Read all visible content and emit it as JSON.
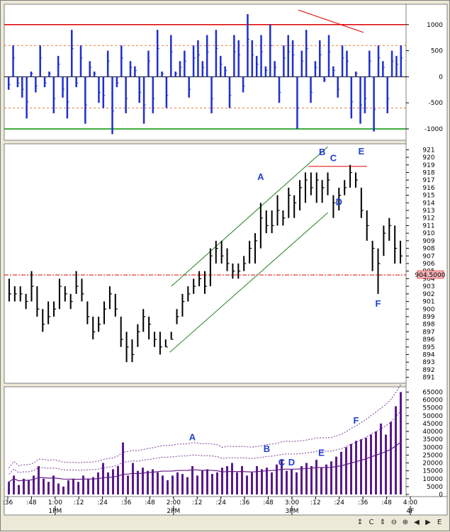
{
  "chart_data": [
    {
      "type": "bar",
      "panel": "oscillator",
      "y_ticks": [
        "1000",
        "500",
        "0",
        "-500",
        "-1000"
      ],
      "ylim": [
        -1150,
        1350
      ],
      "reference_lines": [
        1000,
        0,
        -1000
      ],
      "dotted_lines": [
        600,
        -600
      ],
      "values": [
        -250,
        600,
        -200,
        -400,
        -800,
        100,
        -300,
        600,
        -200,
        100,
        -700,
        400,
        -400,
        -800,
        900,
        -200,
        600,
        -900,
        300,
        100,
        -500,
        -600,
        500,
        -1100,
        -200,
        600,
        -700,
        300,
        200,
        -500,
        -900,
        500,
        -700,
        900,
        100,
        -600,
        800,
        100,
        300,
        500,
        -400,
        600,
        700,
        300,
        800,
        -700,
        900,
        400,
        200,
        -600,
        800,
        700,
        -300,
        1200,
        700,
        400,
        800,
        200,
        1000,
        300,
        -500,
        600,
        800,
        700,
        -1000,
        500,
        900,
        -500,
        300,
        700,
        -100,
        800,
        200,
        -400,
        600,
        500,
        -800,
        100,
        -900,
        -700,
        500,
        -1050,
        600,
        300,
        -700,
        500,
        400,
        600
      ]
    },
    {
      "type": "ohlc",
      "panel": "price",
      "y_ticks": [
        "921",
        "920",
        "919",
        "918",
        "917",
        "916",
        "915",
        "914",
        "913",
        "912",
        "911",
        "910",
        "909",
        "908",
        "907",
        "906",
        "905",
        "904",
        "903",
        "902",
        "901",
        "900",
        "899",
        "898",
        "897",
        "896",
        "895",
        "894",
        "893",
        "892",
        "891"
      ],
      "ylim": [
        890.5,
        921.5
      ],
      "current_price_label": "904.5000",
      "current_price": 904.5,
      "resistance_level": 918.8,
      "bars": [
        [
          904,
          901,
          902
        ],
        [
          903,
          901,
          902
        ],
        [
          903,
          901,
          902
        ],
        [
          902,
          900,
          901
        ],
        [
          905,
          901,
          903
        ],
        [
          903,
          899,
          900
        ],
        [
          900,
          897,
          898
        ],
        [
          901,
          898,
          899
        ],
        [
          901,
          899,
          900
        ],
        [
          904,
          900,
          903
        ],
        [
          903,
          901,
          902
        ],
        [
          902,
          900,
          901
        ],
        [
          905,
          902,
          903
        ],
        [
          904,
          901,
          902
        ],
        [
          901,
          898,
          899
        ],
        [
          899,
          896,
          897
        ],
        [
          899,
          897,
          898
        ],
        [
          901,
          898,
          900
        ],
        [
          903,
          900,
          902
        ],
        [
          902,
          899,
          900
        ],
        [
          899,
          895,
          896
        ],
        [
          897,
          893,
          895
        ],
        [
          896,
          893,
          894
        ],
        [
          898,
          895,
          897
        ],
        [
          900,
          897,
          899
        ],
        [
          899,
          896,
          898
        ],
        [
          897,
          895,
          896
        ],
        [
          897,
          894,
          895
        ],
        [
          896,
          895,
          895
        ],
        [
          897,
          896,
          896
        ],
        [
          900,
          898,
          899
        ],
        [
          902,
          899,
          901
        ],
        [
          903,
          901,
          902
        ],
        [
          904,
          902,
          903
        ],
        [
          905,
          903,
          904
        ],
        [
          905,
          902,
          903
        ],
        [
          908,
          903,
          907
        ],
        [
          909,
          906,
          908
        ],
        [
          909,
          906,
          907
        ],
        [
          908,
          905,
          906
        ],
        [
          906,
          904,
          905
        ],
        [
          906,
          904,
          905
        ],
        [
          907,
          905,
          906
        ],
        [
          909,
          906,
          908
        ],
        [
          910,
          906,
          909
        ],
        [
          914,
          908,
          912
        ],
        [
          913,
          910,
          911
        ],
        [
          913,
          910,
          911
        ],
        [
          915,
          911,
          913
        ],
        [
          913,
          911,
          912
        ],
        [
          916,
          912,
          915
        ],
        [
          915,
          912,
          914
        ],
        [
          917,
          913,
          916
        ],
        [
          918,
          914,
          917
        ],
        [
          918,
          915,
          916
        ],
        [
          918,
          914,
          917
        ],
        [
          917,
          914,
          916
        ],
        [
          918,
          915,
          917
        ],
        [
          915,
          912,
          914
        ],
        [
          916,
          913,
          915
        ],
        [
          917,
          915,
          916
        ],
        [
          919,
          916,
          918
        ],
        [
          918,
          916,
          917
        ],
        [
          916,
          912,
          913
        ],
        [
          913,
          909,
          911
        ],
        [
          909,
          905,
          908
        ],
        [
          908,
          902,
          906
        ],
        [
          911,
          907,
          910
        ],
        [
          912,
          909,
          911
        ],
        [
          911,
          906,
          908
        ],
        [
          909,
          906,
          907
        ]
      ],
      "annotations": [
        {
          "label": "A",
          "bar": 45,
          "value": 917
        },
        {
          "label": "B",
          "bar": 56,
          "value": 920.3
        },
        {
          "label": "C",
          "bar": 58,
          "value": 919.5
        },
        {
          "label": "D",
          "bar": 59,
          "value": 913.7
        },
        {
          "label": "E",
          "bar": 63,
          "value": 920.4
        },
        {
          "label": "F",
          "bar": 66,
          "value": 900.3
        }
      ]
    },
    {
      "type": "bar",
      "panel": "volume",
      "y_ticks": [
        "65000",
        "60000",
        "55000",
        "50000",
        "45000",
        "40000",
        "35000",
        "30000",
        "25000",
        "20000",
        "15000",
        "10000",
        "5000",
        "0"
      ],
      "ylim": [
        0,
        67000
      ],
      "values": [
        8000,
        12000,
        6000,
        10000,
        9000,
        12000,
        18000,
        10000,
        8000,
        12000,
        7000,
        5000,
        9000,
        10000,
        8000,
        12000,
        10000,
        11000,
        14000,
        20000,
        14000,
        16000,
        18000,
        33000,
        12000,
        20000,
        15000,
        17000,
        15000,
        16000,
        14000,
        12000,
        9000,
        12000,
        14000,
        13000,
        11000,
        18000,
        12000,
        15000,
        16000,
        13000,
        14000,
        17000,
        18000,
        20000,
        14000,
        18000,
        12000,
        14000,
        18000,
        16000,
        17000,
        14000,
        19000,
        22000,
        15000,
        16000,
        14000,
        18000,
        20000,
        18000,
        22000,
        17000,
        19000,
        21000,
        24000,
        27000,
        30000,
        32000,
        34000,
        35000,
        36000,
        38000,
        40000,
        45000,
        38000,
        46000,
        56000,
        65000
      ],
      "annotations": [
        {
          "label": "A",
          "bar": 37,
          "value": 34500
        },
        {
          "label": "B",
          "bar": 52,
          "value": 27000
        },
        {
          "label": "C",
          "bar": 55,
          "value": 18500
        },
        {
          "label": "D",
          "bar": 57,
          "value": 18500
        },
        {
          "label": "E",
          "bar": 63,
          "value": 24500
        },
        {
          "label": "F",
          "bar": 70,
          "value": 45000
        }
      ]
    }
  ],
  "time_axis": {
    "ticks": [
      ":36",
      ":48",
      "1:00",
      ":12",
      ":24",
      ":36",
      ":48",
      "2:00",
      ":12",
      ":24",
      ":36",
      ":48",
      "3:00",
      ":12",
      ":24",
      ":36",
      ":48",
      "4:00"
    ],
    "sessions": [
      "1PM",
      "2PM",
      "3PM",
      "4F"
    ]
  },
  "toolbar": [
    "↕",
    "C",
    "⇕",
    "⊖",
    "⊕",
    "◀",
    "▶",
    "E"
  ]
}
